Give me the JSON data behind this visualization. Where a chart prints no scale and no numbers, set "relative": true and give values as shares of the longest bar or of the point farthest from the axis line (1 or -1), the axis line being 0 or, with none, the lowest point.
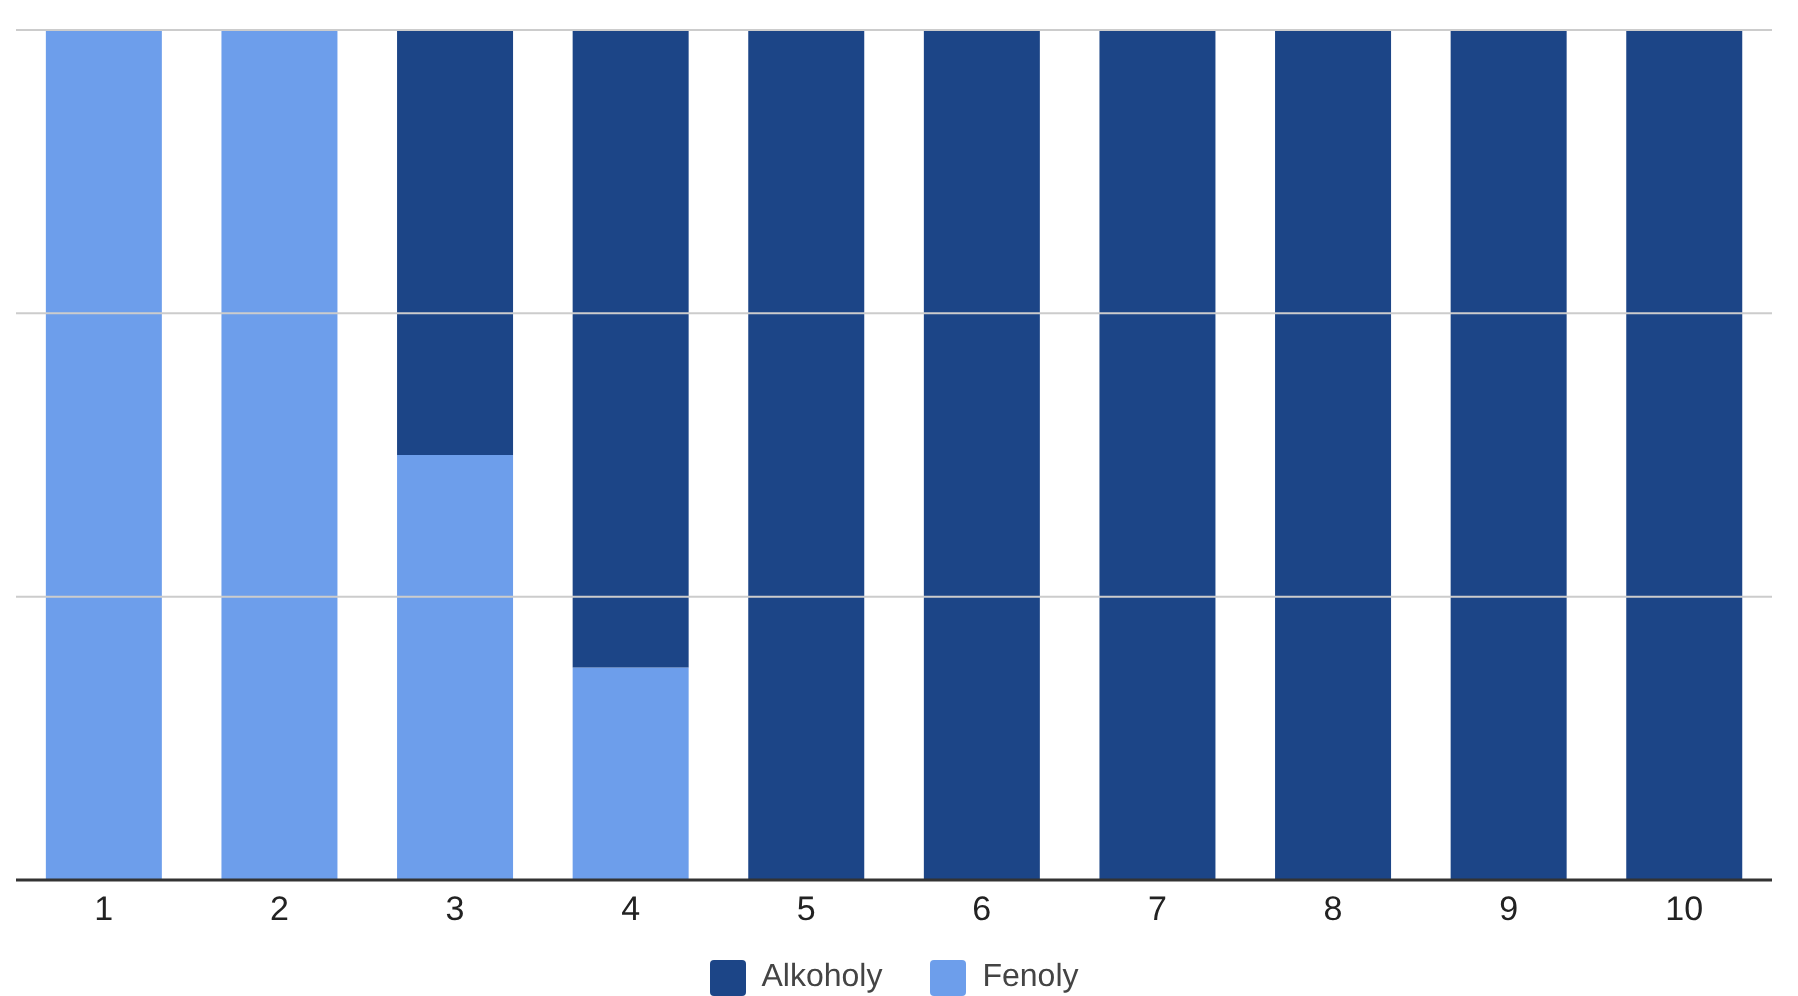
{
  "chart_data": {
    "type": "bar",
    "stacked": true,
    "relative": true,
    "categories": [
      "1",
      "2",
      "3",
      "4",
      "5",
      "6",
      "7",
      "8",
      "9",
      "10"
    ],
    "series": [
      {
        "name": "Fenoly",
        "color": "#6d9eeb",
        "values": [
          1,
          1,
          0.5,
          0.25,
          0,
          0,
          0,
          0,
          0,
          0
        ]
      },
      {
        "name": "Alkoholy",
        "color": "#1c4587",
        "values": [
          0,
          0,
          0.5,
          0.75,
          1,
          1,
          1,
          1,
          1,
          1
        ]
      }
    ],
    "ref_lines": [
      {
        "axis": "y",
        "value": 0.3333,
        "color": "#cccccc"
      },
      {
        "axis": "y",
        "value": 0.6667,
        "color": "#cccccc"
      },
      {
        "axis": "y",
        "value": 1,
        "color": "#cccccc"
      }
    ],
    "legend": "bottom"
  }
}
